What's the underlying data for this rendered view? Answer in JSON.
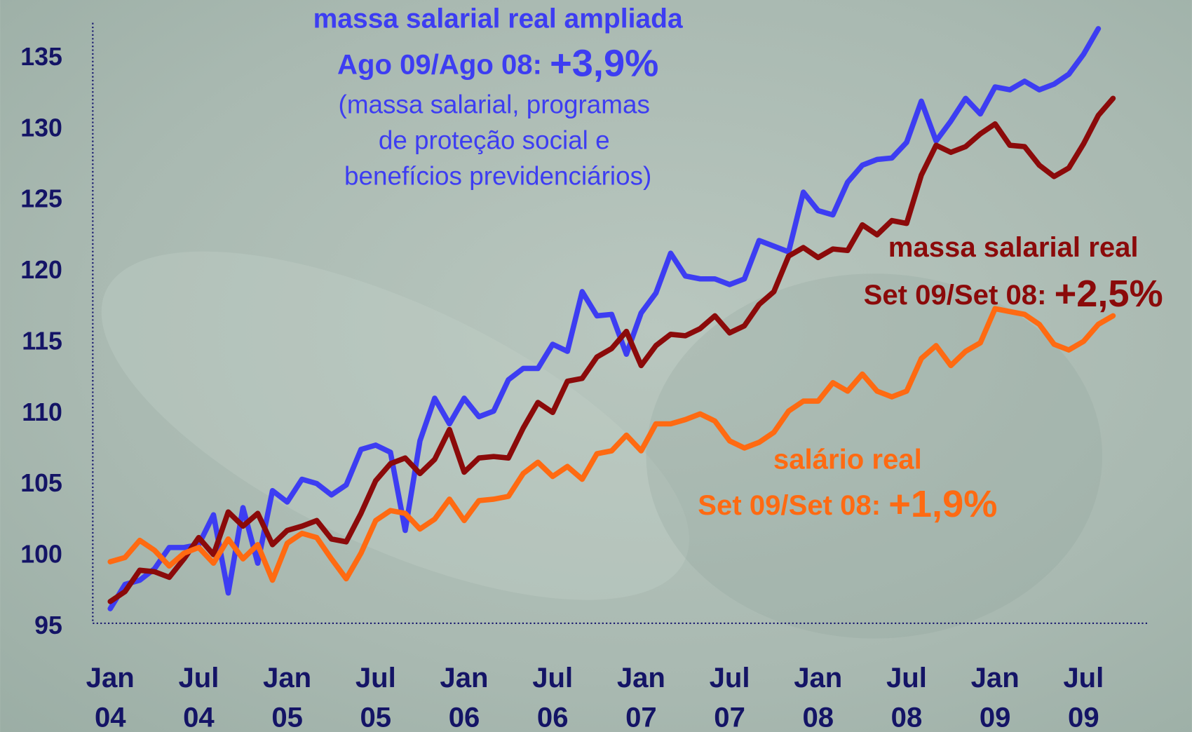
{
  "chart_data": {
    "type": "line",
    "categories": [
      "Jan 04",
      null,
      null,
      null,
      null,
      null,
      "Jul 04",
      null,
      null,
      null,
      null,
      null,
      "Jan 05",
      null,
      null,
      null,
      null,
      null,
      "Jul 05",
      null,
      null,
      null,
      null,
      null,
      "Jan 06",
      null,
      null,
      null,
      null,
      null,
      "Jul 06",
      null,
      null,
      null,
      null,
      null,
      "Jan 07",
      null,
      null,
      null,
      null,
      null,
      "Jul 07",
      null,
      null,
      null,
      null,
      null,
      "Jan 08",
      null,
      null,
      null,
      null,
      null,
      "Jul 08",
      null,
      null,
      null,
      null,
      null,
      "Jan 09",
      null,
      null,
      null,
      null,
      null,
      "Jul 09",
      null,
      null
    ],
    "ylim": [
      95,
      137.5
    ],
    "yticks": [
      95,
      100,
      105,
      110,
      115,
      120,
      125,
      130,
      135
    ],
    "grid": false,
    "series": [
      {
        "color": "#3d3df2",
        "values": [
          96.3,
          98.0,
          98.3,
          99.1,
          100.6,
          100.6,
          100.8,
          102.9,
          97.4,
          103.4,
          99.5,
          104.6,
          103.8,
          105.4,
          105.1,
          104.3,
          105.0,
          107.5,
          107.8,
          107.3,
          101.8,
          108.1,
          111.1,
          109.3,
          111.1,
          109.8,
          110.2,
          112.4,
          113.2,
          113.2,
          114.9,
          114.4,
          118.6,
          116.9,
          117.0,
          114.2,
          117.1,
          118.5,
          121.3,
          119.7,
          119.5,
          119.5,
          119.1,
          119.5,
          122.2,
          121.8,
          121.4,
          125.6,
          124.3,
          124.0,
          126.3,
          127.5,
          127.9,
          128.0,
          129.1,
          132.0,
          129.2,
          130.6,
          132.2,
          131.1,
          133.0,
          132.8,
          133.4,
          132.8,
          133.2,
          133.9,
          135.3,
          137.1,
          null
        ]
      },
      {
        "color": "#8b0a0a",
        "values": [
          96.8,
          97.5,
          99.0,
          98.9,
          98.5,
          99.8,
          101.3,
          100.1,
          103.1,
          102.1,
          103.0,
          100.8,
          101.8,
          102.1,
          102.5,
          101.2,
          101.0,
          103.0,
          105.3,
          106.5,
          106.9,
          105.8,
          106.8,
          108.9,
          105.9,
          106.9,
          107.0,
          106.9,
          109.0,
          110.8,
          110.1,
          112.3,
          112.5,
          114.0,
          114.6,
          115.8,
          113.4,
          114.8,
          115.6,
          115.5,
          116.0,
          116.9,
          115.7,
          116.2,
          117.7,
          118.6,
          121.1,
          121.7,
          121.0,
          121.6,
          121.5,
          123.3,
          122.6,
          123.6,
          123.4,
          126.8,
          128.9,
          128.4,
          128.8,
          129.7,
          130.4,
          128.9,
          128.8,
          127.5,
          126.7,
          127.3,
          129.0,
          131.0,
          132.2
        ]
      },
      {
        "color": "#ff6a12",
        "values": [
          99.6,
          99.9,
          101.1,
          100.4,
          99.3,
          100.2,
          100.6,
          99.5,
          101.2,
          99.8,
          100.8,
          98.3,
          100.9,
          101.6,
          101.3,
          99.8,
          98.4,
          100.2,
          102.5,
          103.2,
          103.0,
          101.9,
          102.6,
          104.0,
          102.5,
          103.9,
          104.0,
          104.2,
          105.8,
          106.6,
          105.6,
          106.3,
          105.4,
          107.2,
          107.4,
          108.5,
          107.4,
          109.3,
          109.3,
          109.6,
          110.0,
          109.5,
          108.1,
          107.6,
          108.0,
          108.7,
          110.2,
          110.9,
          110.9,
          112.2,
          111.6,
          112.8,
          111.6,
          111.2,
          111.6,
          113.9,
          114.8,
          113.4,
          114.4,
          115.0,
          117.4,
          117.2,
          117.0,
          116.3,
          114.9,
          114.5,
          115.1,
          116.3,
          116.9
        ]
      }
    ],
    "annotations": [
      {
        "lines": [
          "massa salarial real ampliada",
          "Ago 09/Ago 08: ",
          "+3,9%",
          "(massa salarial, programas",
          "de proteção social e",
          "benefícios previdenciários)"
        ]
      },
      {
        "lines": [
          "massa salarial real",
          "Set 09/Set 08: ",
          "+2,5%"
        ]
      },
      {
        "lines": [
          "salário real",
          "Set 09/Set 08: ",
          "+1,9%"
        ]
      }
    ]
  }
}
